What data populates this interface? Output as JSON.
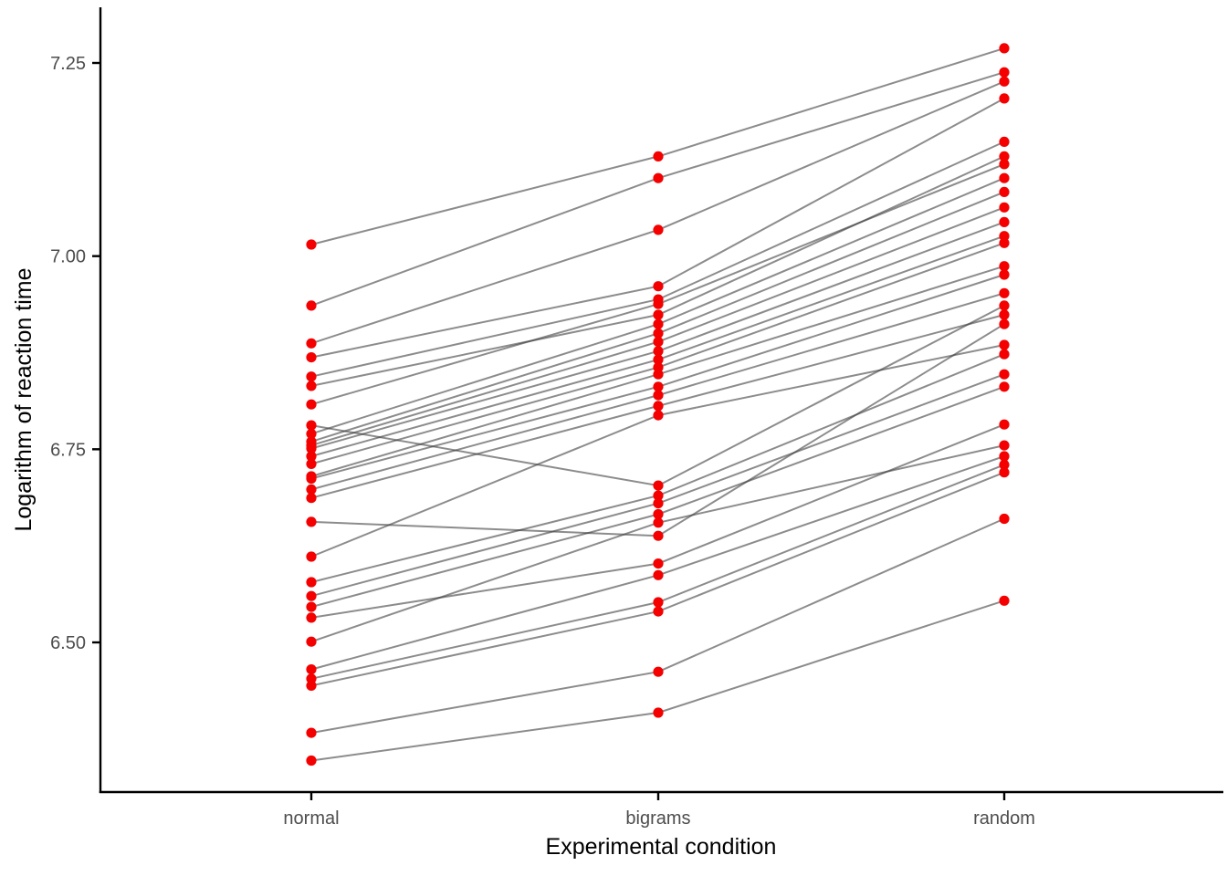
{
  "figure": {
    "background": "#FFFFFF"
  },
  "chart_data": {
    "type": "line",
    "subtype": "paired-points-spaghetti",
    "title": "",
    "xlabel": "Experimental condition",
    "ylabel": "Logarithm of reaction time",
    "categories": [
      "normal",
      "bigrams",
      "random"
    ],
    "y_ticks": [
      6.5,
      6.75,
      7.0,
      7.25
    ],
    "y_tick_labels": [
      "6.50",
      "6.75",
      "7.00",
      "7.25"
    ],
    "ylim": [
      6.31,
      7.32
    ],
    "grid": false,
    "legend": "none",
    "point_color": "#F50000",
    "line_color": "#3F3F3F",
    "line_opacity": 0.6,
    "axis_color": "#000000",
    "tick_label_color": "#4D4D4D",
    "series": [
      {
        "name": "s01",
        "values": [
          7.015,
          7.129,
          7.269
        ]
      },
      {
        "name": "s02",
        "values": [
          6.936,
          7.101,
          7.238
        ]
      },
      {
        "name": "s03",
        "values": [
          6.887,
          7.034,
          7.226
        ]
      },
      {
        "name": "s04",
        "values": [
          6.869,
          6.961,
          7.204
        ]
      },
      {
        "name": "s05",
        "values": [
          6.844,
          6.944,
          7.148
        ]
      },
      {
        "name": "s06",
        "values": [
          6.832,
          6.924,
          7.129
        ]
      },
      {
        "name": "s07",
        "values": [
          6.808,
          6.938,
          7.119
        ]
      },
      {
        "name": "s08",
        "values": [
          6.781,
          6.703,
          6.936
        ]
      },
      {
        "name": "s09",
        "values": [
          6.77,
          6.912,
          7.101
        ]
      },
      {
        "name": "s10",
        "values": [
          6.76,
          6.9,
          7.083
        ]
      },
      {
        "name": "s11",
        "values": [
          6.755,
          6.889,
          7.063
        ]
      },
      {
        "name": "s12",
        "values": [
          6.751,
          6.877,
          7.044
        ]
      },
      {
        "name": "s13",
        "values": [
          6.741,
          6.866,
          7.026
        ]
      },
      {
        "name": "s14",
        "values": [
          6.731,
          6.856,
          7.017
        ]
      },
      {
        "name": "s15",
        "values": [
          6.715,
          6.847,
          6.987
        ]
      },
      {
        "name": "s16",
        "values": [
          6.712,
          6.831,
          6.976
        ]
      },
      {
        "name": "s17",
        "values": [
          6.698,
          6.82,
          6.952
        ]
      },
      {
        "name": "s18",
        "values": [
          6.687,
          6.806,
          6.924
        ]
      },
      {
        "name": "s19",
        "values": [
          6.656,
          6.638,
          6.912
        ]
      },
      {
        "name": "s20",
        "values": [
          6.611,
          6.794,
          6.885
        ]
      },
      {
        "name": "s21",
        "values": [
          6.578,
          6.69,
          6.873
        ]
      },
      {
        "name": "s22",
        "values": [
          6.56,
          6.68,
          6.847
        ]
      },
      {
        "name": "s23",
        "values": [
          6.546,
          6.666,
          6.831
        ]
      },
      {
        "name": "s24",
        "values": [
          6.532,
          6.602,
          6.782
        ]
      },
      {
        "name": "s25",
        "values": [
          6.501,
          6.655,
          6.755
        ]
      },
      {
        "name": "s26",
        "values": [
          6.465,
          6.587,
          6.741
        ]
      },
      {
        "name": "s27",
        "values": [
          6.453,
          6.552,
          6.73
        ]
      },
      {
        "name": "s28",
        "values": [
          6.444,
          6.54,
          6.72
        ]
      },
      {
        "name": "s29",
        "values": [
          6.383,
          6.462,
          6.66
        ]
      },
      {
        "name": "s30",
        "values": [
          6.347,
          6.409,
          6.554
        ]
      }
    ]
  }
}
